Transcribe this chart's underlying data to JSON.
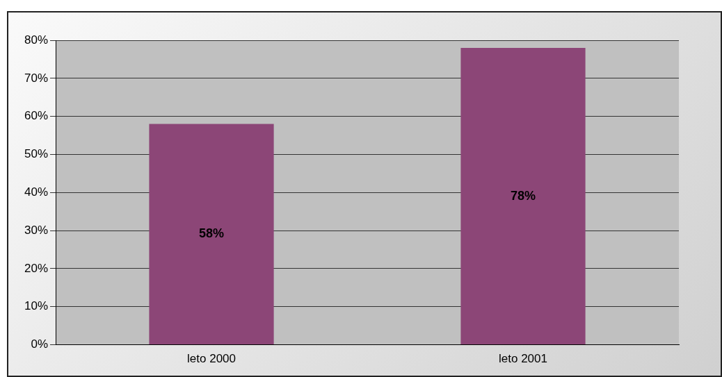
{
  "chart_data": {
    "type": "bar",
    "categories": [
      "leto 2000",
      "leto 2001"
    ],
    "values": [
      58,
      78
    ],
    "color": "#8c4677",
    "value_labels": [
      "58%",
      "78%"
    ],
    "ylim": [
      0,
      80
    ],
    "yticks": [
      {
        "value": 0,
        "label": "0%"
      },
      {
        "value": 10,
        "label": "10%"
      },
      {
        "value": 20,
        "label": "20%"
      },
      {
        "value": 30,
        "label": "30%"
      },
      {
        "value": 40,
        "label": "40%"
      },
      {
        "value": 50,
        "label": "50%"
      },
      {
        "value": 60,
        "label": "60%"
      },
      {
        "value": 70,
        "label": "70%"
      },
      {
        "value": 80,
        "label": "80%"
      }
    ],
    "grid": "y"
  }
}
